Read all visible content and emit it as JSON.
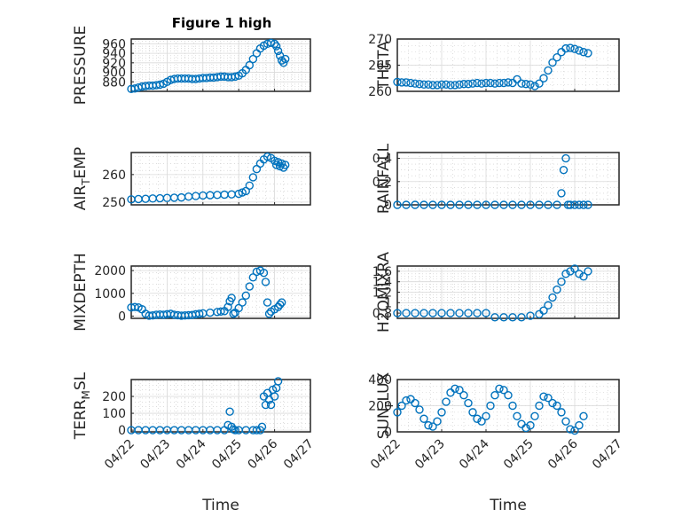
{
  "figure": {
    "title": "Figure 1 high"
  },
  "chart_data": [
    {
      "type": "scatter",
      "ylabel": "PRESSURE",
      "title": "Figure 1 high",
      "xlim": [
        "04/22",
        "04/27"
      ],
      "ylim": [
        860,
        970
      ],
      "yticks": [
        880,
        900,
        920,
        940,
        960
      ],
      "xticks": [
        "04/22",
        "04/23",
        "04/24",
        "04/25",
        "04/26",
        "04/27"
      ],
      "xlabel": "",
      "grid": true,
      "x": [
        0.0,
        0.1,
        0.2,
        0.3,
        0.4,
        0.5,
        0.6,
        0.7,
        0.8,
        0.9,
        1.0,
        1.1,
        1.2,
        1.3,
        1.4,
        1.5,
        1.6,
        1.7,
        1.8,
        1.9,
        2.0,
        2.1,
        2.2,
        2.3,
        2.4,
        2.5,
        2.6,
        2.7,
        2.8,
        2.9,
        3.0,
        3.1,
        3.2,
        3.3,
        3.4,
        3.5,
        3.6,
        3.7,
        3.8,
        3.9,
        4.0,
        4.05,
        4.1,
        4.15,
        4.2,
        4.25,
        4.3
      ],
      "y": [
        865,
        866,
        868,
        870,
        871,
        872,
        872,
        873,
        874,
        876,
        880,
        884,
        886,
        887,
        887,
        887,
        887,
        886,
        886,
        887,
        888,
        888,
        889,
        889,
        890,
        891,
        891,
        890,
        890,
        891,
        893,
        898,
        905,
        915,
        928,
        940,
        950,
        956,
        960,
        962,
        960,
        955,
        945,
        935,
        925,
        920,
        928
      ]
    },
    {
      "type": "scatter",
      "ylabel": "THETA",
      "xlim": [
        "04/22",
        "04/27"
      ],
      "ylim": [
        260,
        270
      ],
      "yticks": [
        260,
        265,
        270
      ],
      "xticks": [
        "04/22",
        "04/23",
        "04/24",
        "04/25",
        "04/26",
        "04/27"
      ],
      "xlabel": "",
      "grid": true,
      "x": [
        0.0,
        0.1,
        0.2,
        0.3,
        0.4,
        0.5,
        0.6,
        0.7,
        0.8,
        0.9,
        1.0,
        1.1,
        1.2,
        1.3,
        1.4,
        1.5,
        1.6,
        1.7,
        1.8,
        1.9,
        2.0,
        2.1,
        2.2,
        2.3,
        2.4,
        2.5,
        2.6,
        2.7,
        2.8,
        2.9,
        3.0,
        3.1,
        3.2,
        3.3,
        3.4,
        3.5,
        3.6,
        3.7,
        3.8,
        3.9,
        4.0,
        4.1,
        4.2,
        4.3
      ],
      "y": [
        261.8,
        261.7,
        261.7,
        261.6,
        261.5,
        261.4,
        261.3,
        261.3,
        261.2,
        261.2,
        261.3,
        261.3,
        261.2,
        261.2,
        261.3,
        261.4,
        261.4,
        261.5,
        261.6,
        261.5,
        261.6,
        261.6,
        261.5,
        261.6,
        261.6,
        261.7,
        261.6,
        262.3,
        261.5,
        261.4,
        261.3,
        261.0,
        261.5,
        262.5,
        264.0,
        265.5,
        266.5,
        267.5,
        268.2,
        268.3,
        268.1,
        267.8,
        267.5,
        267.3
      ]
    },
    {
      "type": "scatter",
      "ylabel": "AIR_TEMP",
      "xlim": [
        "04/22",
        "04/27"
      ],
      "ylim": [
        249,
        268
      ],
      "yticks": [
        250,
        260
      ],
      "xticks": [
        "04/22",
        "04/23",
        "04/24",
        "04/25",
        "04/26",
        "04/27"
      ],
      "xlabel": "",
      "grid": true,
      "x": [
        0.0,
        0.2,
        0.4,
        0.6,
        0.8,
        1.0,
        1.2,
        1.4,
        1.6,
        1.8,
        2.0,
        2.2,
        2.4,
        2.6,
        2.8,
        3.0,
        3.1,
        3.2,
        3.3,
        3.4,
        3.5,
        3.6,
        3.7,
        3.8,
        3.9,
        4.0,
        4.05,
        4.1,
        4.15,
        4.2,
        4.25,
        4.3
      ],
      "y": [
        251.0,
        251.1,
        251.2,
        251.3,
        251.4,
        251.5,
        251.6,
        251.7,
        252.0,
        252.2,
        252.4,
        252.5,
        252.6,
        252.7,
        252.8,
        253.0,
        253.5,
        254.0,
        256.0,
        259.0,
        262.0,
        264.0,
        265.5,
        266.5,
        266.0,
        265.0,
        263.5,
        264.5,
        263.0,
        264.0,
        262.5,
        263.5
      ]
    },
    {
      "type": "scatter",
      "ylabel": "RAINFALL",
      "xlim": [
        "04/22",
        "04/27"
      ],
      "ylim": [
        0,
        0.45
      ],
      "yticks": [
        0,
        0.2,
        0.4
      ],
      "xticks": [
        "04/22",
        "04/23",
        "04/24",
        "04/25",
        "04/26",
        "04/27"
      ],
      "xlabel": "",
      "grid": true,
      "x": [
        0.0,
        0.2,
        0.4,
        0.6,
        0.8,
        1.0,
        1.2,
        1.4,
        1.6,
        1.8,
        2.0,
        2.2,
        2.4,
        2.6,
        2.8,
        3.0,
        3.2,
        3.4,
        3.6,
        3.7,
        3.75,
        3.8,
        3.85,
        3.9,
        4.0,
        4.1,
        4.2,
        4.3
      ],
      "y": [
        0,
        0,
        0,
        0,
        0,
        0,
        0,
        0,
        0,
        0,
        0,
        0,
        0,
        0,
        0,
        0,
        0,
        0,
        0,
        0.1,
        0.3,
        0.4,
        0,
        0,
        0,
        0,
        0,
        0
      ]
    },
    {
      "type": "scatter",
      "ylabel": "MIXDEPTH",
      "xlim": [
        "04/22",
        "04/27"
      ],
      "ylim": [
        -100,
        2200
      ],
      "yticks": [
        0,
        1000,
        2000
      ],
      "xticks": [
        "04/22",
        "04/23",
        "04/24",
        "04/25",
        "04/26",
        "04/27"
      ],
      "xlabel": "",
      "grid": true,
      "x": [
        0.0,
        0.1,
        0.2,
        0.3,
        0.4,
        0.5,
        0.6,
        0.7,
        0.8,
        0.9,
        1.0,
        1.1,
        1.2,
        1.3,
        1.4,
        1.5,
        1.6,
        1.7,
        1.8,
        1.9,
        2.0,
        2.2,
        2.4,
        2.5,
        2.6,
        2.7,
        2.75,
        2.8,
        2.85,
        2.9,
        3.0,
        3.1,
        3.2,
        3.3,
        3.4,
        3.5,
        3.6,
        3.7,
        3.75,
        3.8,
        3.85,
        3.9,
        4.0,
        4.1,
        4.15,
        4.2
      ],
      "y": [
        380,
        400,
        380,
        300,
        100,
        20,
        30,
        60,
        70,
        60,
        80,
        100,
        60,
        40,
        20,
        30,
        40,
        50,
        80,
        100,
        120,
        150,
        180,
        200,
        220,
        400,
        650,
        800,
        100,
        150,
        350,
        600,
        900,
        1300,
        1700,
        1950,
        2000,
        1900,
        1500,
        600,
        100,
        200,
        300,
        400,
        500,
        600
      ]
    },
    {
      "type": "scatter",
      "ylabel": "H2OMIXRA",
      "xlim": [
        "04/22",
        "04/27"
      ],
      "ylim": [
        0.7,
        1.7
      ],
      "yticks": [
        0.8,
        1,
        1.2,
        1.4,
        1.6
      ],
      "xticks": [
        "04/22",
        "04/23",
        "04/24",
        "04/25",
        "04/26",
        "04/27"
      ],
      "xlabel": "",
      "grid": true,
      "x": [
        0.0,
        0.2,
        0.4,
        0.6,
        0.8,
        1.0,
        1.2,
        1.4,
        1.6,
        1.8,
        2.0,
        2.2,
        2.4,
        2.6,
        2.8,
        3.0,
        3.2,
        3.3,
        3.4,
        3.5,
        3.6,
        3.7,
        3.8,
        3.9,
        4.0,
        4.1,
        4.2,
        4.3
      ],
      "y": [
        0.8,
        0.8,
        0.8,
        0.8,
        0.8,
        0.8,
        0.8,
        0.8,
        0.8,
        0.8,
        0.8,
        0.72,
        0.72,
        0.72,
        0.72,
        0.75,
        0.78,
        0.85,
        0.95,
        1.1,
        1.25,
        1.4,
        1.55,
        1.6,
        1.65,
        1.55,
        1.5,
        1.6
      ]
    },
    {
      "type": "scatter",
      "ylabel": "TERR_MSL",
      "xlim": [
        "04/22",
        "04/27"
      ],
      "ylim": [
        -10,
        300
      ],
      "yticks": [
        0,
        100,
        200
      ],
      "xticks": [
        "04/22",
        "04/23",
        "04/24",
        "04/25",
        "04/26",
        "04/27"
      ],
      "xlabel": "Time",
      "grid": true,
      "x": [
        0.0,
        0.2,
        0.4,
        0.6,
        0.8,
        1.0,
        1.2,
        1.4,
        1.6,
        1.8,
        2.0,
        2.2,
        2.4,
        2.6,
        2.7,
        2.75,
        2.8,
        2.85,
        2.9,
        3.0,
        3.2,
        3.4,
        3.5,
        3.6,
        3.65,
        3.7,
        3.75,
        3.8,
        3.85,
        3.9,
        3.95,
        4.0,
        4.05,
        4.1
      ],
      "y": [
        0,
        0,
        0,
        0,
        0,
        0,
        0,
        0,
        0,
        0,
        0,
        0,
        0,
        0,
        30,
        110,
        20,
        5,
        0,
        0,
        0,
        0,
        0,
        0,
        20,
        200,
        150,
        220,
        180,
        150,
        240,
        200,
        250,
        290
      ]
    },
    {
      "type": "scatter",
      "ylabel": "SUN_FLUX",
      "xlim": [
        "04/22",
        "04/27"
      ],
      "ylim": [
        0,
        400
      ],
      "yticks": [
        0,
        200,
        400
      ],
      "xticks": [
        "04/22",
        "04/23",
        "04/24",
        "04/25",
        "04/26",
        "04/27"
      ],
      "xlabel": "Time",
      "grid": true,
      "x": [
        0.0,
        0.1,
        0.2,
        0.3,
        0.4,
        0.5,
        0.6,
        0.7,
        0.8,
        0.9,
        1.0,
        1.1,
        1.2,
        1.3,
        1.4,
        1.5,
        1.6,
        1.7,
        1.8,
        1.9,
        2.0,
        2.1,
        2.2,
        2.3,
        2.4,
        2.5,
        2.6,
        2.7,
        2.8,
        2.9,
        3.0,
        3.1,
        3.2,
        3.3,
        3.4,
        3.5,
        3.6,
        3.7,
        3.8,
        3.9,
        4.0,
        4.1,
        4.2
      ],
      "y": [
        150,
        200,
        240,
        250,
        220,
        170,
        100,
        50,
        40,
        80,
        150,
        230,
        300,
        330,
        320,
        280,
        220,
        150,
        100,
        80,
        120,
        200,
        280,
        330,
        320,
        280,
        200,
        120,
        60,
        30,
        50,
        120,
        200,
        270,
        260,
        220,
        200,
        150,
        80,
        20,
        10,
        50,
        120
      ]
    }
  ],
  "style": {
    "series_color": "#0072bd"
  }
}
